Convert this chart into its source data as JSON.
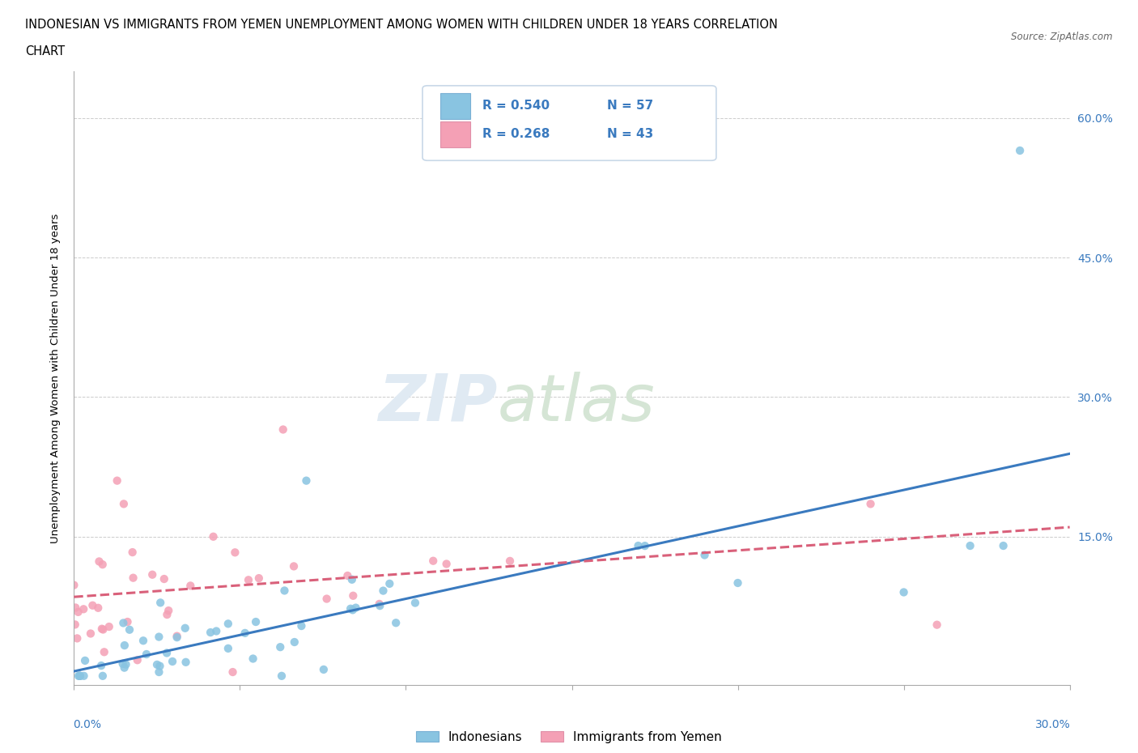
{
  "title_line1": "INDONESIAN VS IMMIGRANTS FROM YEMEN UNEMPLOYMENT AMONG WOMEN WITH CHILDREN UNDER 18 YEARS CORRELATION",
  "title_line2": "CHART",
  "source": "Source: ZipAtlas.com",
  "ylabel": "Unemployment Among Women with Children Under 18 years",
  "ytick_values": [
    0.0,
    0.15,
    0.3,
    0.45,
    0.6
  ],
  "ytick_labels": [
    "",
    "15.0%",
    "30.0%",
    "45.0%",
    "60.0%"
  ],
  "xmin": 0.0,
  "xmax": 0.3,
  "ymin": -0.01,
  "ymax": 0.65,
  "legend1_r": "0.540",
  "legend1_n": "57",
  "legend2_r": "0.268",
  "legend2_n": "43",
  "color_blue": "#89c4e1",
  "color_pink": "#f4a0b5",
  "color_line_blue": "#3a7abf",
  "color_line_pink": "#d9607a",
  "color_text_blue": "#3a7abf",
  "ind_intercept": 0.005,
  "ind_slope": 0.78,
  "yem_intercept": 0.085,
  "yem_slope": 0.25
}
